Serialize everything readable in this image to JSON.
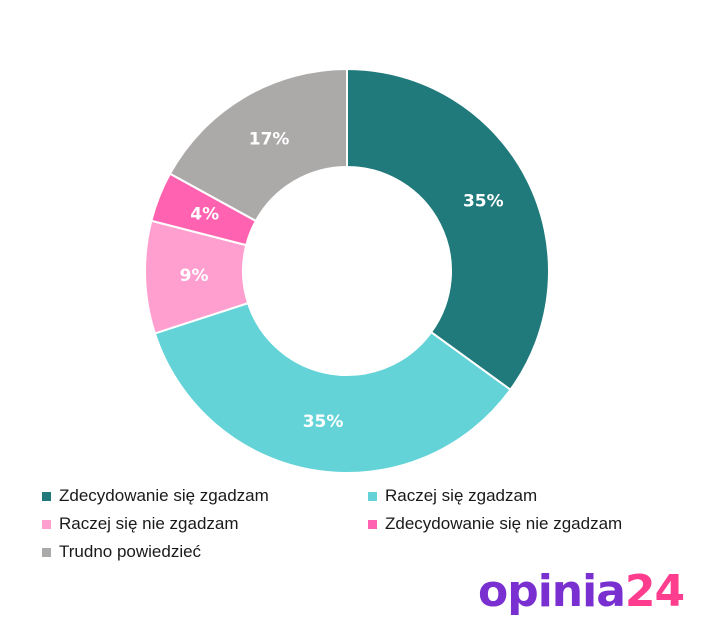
{
  "chart_data": {
    "type": "pie",
    "subtype": "donut",
    "slices": [
      {
        "label": "Zdecydowanie się zgadzam",
        "value": 35,
        "display": "35%",
        "color": "#20797a"
      },
      {
        "label": "Raczej się zgadzam",
        "value": 35,
        "display": "35%",
        "color": "#63d3d8"
      },
      {
        "label": "Raczej się nie zgadzam",
        "value": 9,
        "display": "9%",
        "color": "#ff9fd0"
      },
      {
        "label": "Zdecydowanie się nie zgadzam",
        "value": 4,
        "display": "4%",
        "color": "#ff62b0"
      },
      {
        "label": "Trudno powiedzieć",
        "value": 17,
        "display": "17%",
        "color": "#aca9a9"
      }
    ],
    "legend_position": "bottom"
  },
  "brand": {
    "logo_part1": "opinia",
    "logo_part2": "24",
    "color1": "#7a2fd1",
    "color2": "#ff3d8f"
  }
}
